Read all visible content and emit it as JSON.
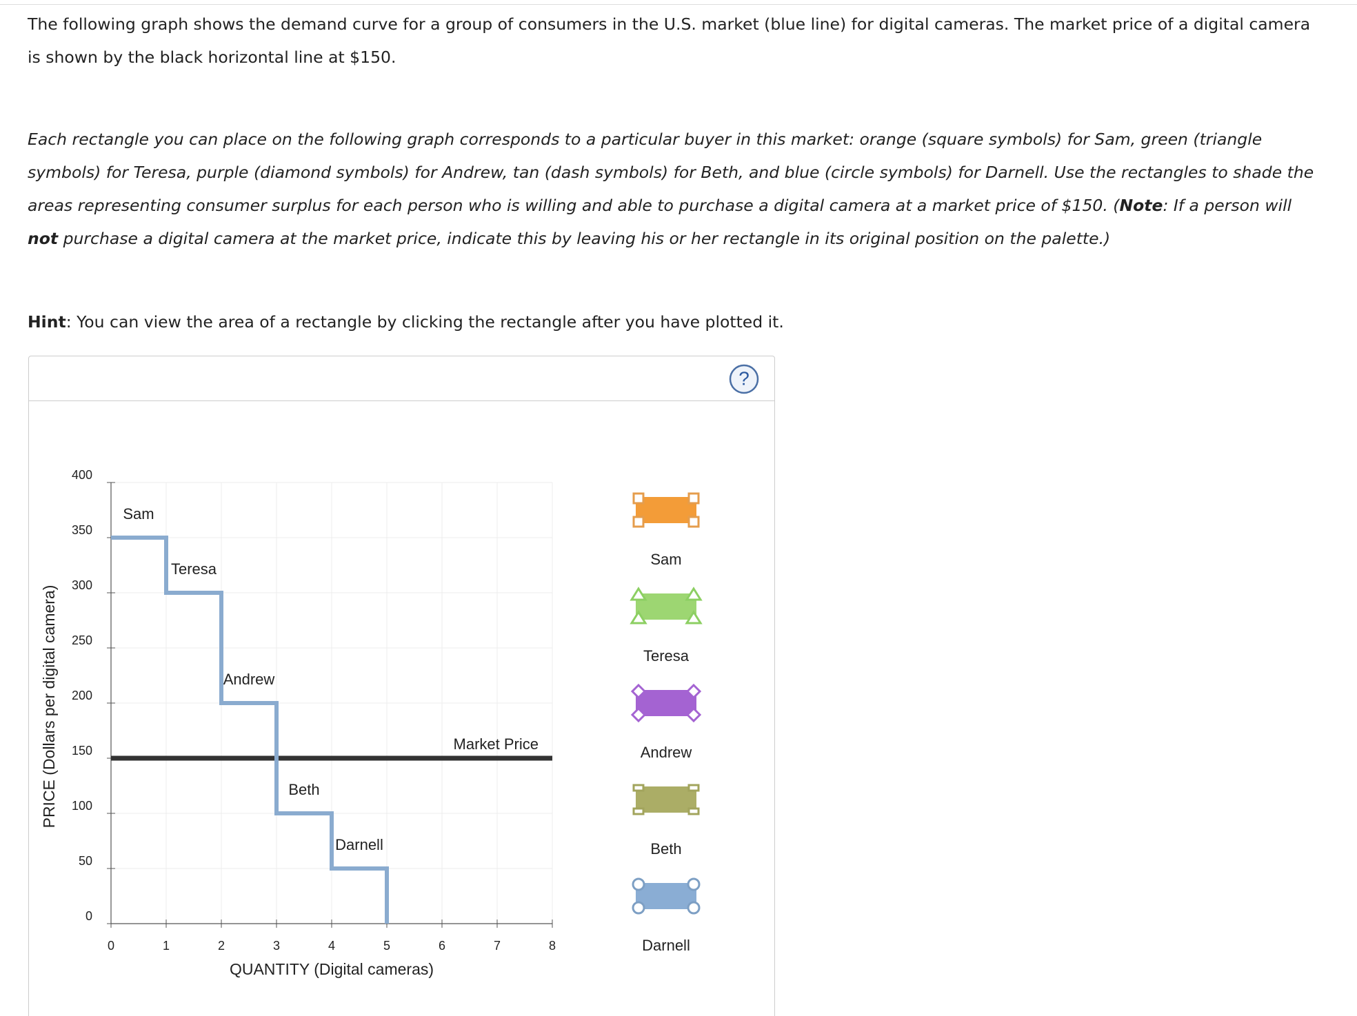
{
  "intro": "The following graph shows the demand curve for a group of consumers in the U.S. market (blue line) for digital cameras. The market price of a digital camera is shown by the black horizontal line at $150.",
  "instructions": [
    "Each rectangle you can place on the following graph corresponds to a particular buyer in this market: orange (square symbols) for Sam, green (triangle symbols) for Teresa, purple (diamond symbols) for Andrew, tan (dash symbols) for Beth, and blue (circle symbols) for Darnell. Use the rectangles to shade the areas representing consumer surplus for each person who is willing and able to purchase a digital camera at a market price of $150. (",
    "Note",
    ": If a person will ",
    "not",
    " purchase a digital camera at the market price, indicate this by leaving his or her rectangle in its original position on the palette.)"
  ],
  "hint": [
    "Hint",
    ": You can view the area of a rectangle by clicking the rectangle after you have plotted it."
  ],
  "help_icon": "?",
  "chart_data": {
    "type": "step",
    "x_label": "QUANTITY (Digital cameras)",
    "y_label": "PRICE (Dollars per digital camera)",
    "xlim": [
      0,
      8
    ],
    "xticks": [
      0,
      1,
      2,
      3,
      4,
      5,
      6,
      7,
      8
    ],
    "ylim": [
      0,
      400
    ],
    "yticks": [
      0,
      50,
      100,
      150,
      200,
      250,
      300,
      350,
      400
    ],
    "grid": true,
    "demand": {
      "color": "#8aabcf",
      "x": [
        0,
        1,
        1,
        2,
        2,
        3,
        3,
        4,
        4,
        5,
        5
      ],
      "values": [
        350,
        350,
        300,
        300,
        200,
        200,
        100,
        100,
        50,
        50,
        0
      ]
    },
    "buyer_labels": [
      "Sam",
      "Teresa",
      "Andrew",
      "Beth",
      "Darnell"
    ],
    "market_price": {
      "value": 150,
      "label": "Market Price",
      "color": "#333333"
    },
    "palette": [
      {
        "name": "Sam",
        "color": "#f39c38",
        "edge": "#e59d4c",
        "symbol": "square"
      },
      {
        "name": "Teresa",
        "color": "#9dd672",
        "edge": "#8ccf62",
        "symbol": "triangle"
      },
      {
        "name": "Andrew",
        "color": "#a463d2",
        "edge": "#a463d2",
        "symbol": "diamond"
      },
      {
        "name": "Beth",
        "color": "#abad66",
        "edge": "#a2a45c",
        "symbol": "dash"
      },
      {
        "name": "Darnell",
        "color": "#8aadd4",
        "edge": "#7d9fc4",
        "symbol": "circle"
      }
    ]
  }
}
